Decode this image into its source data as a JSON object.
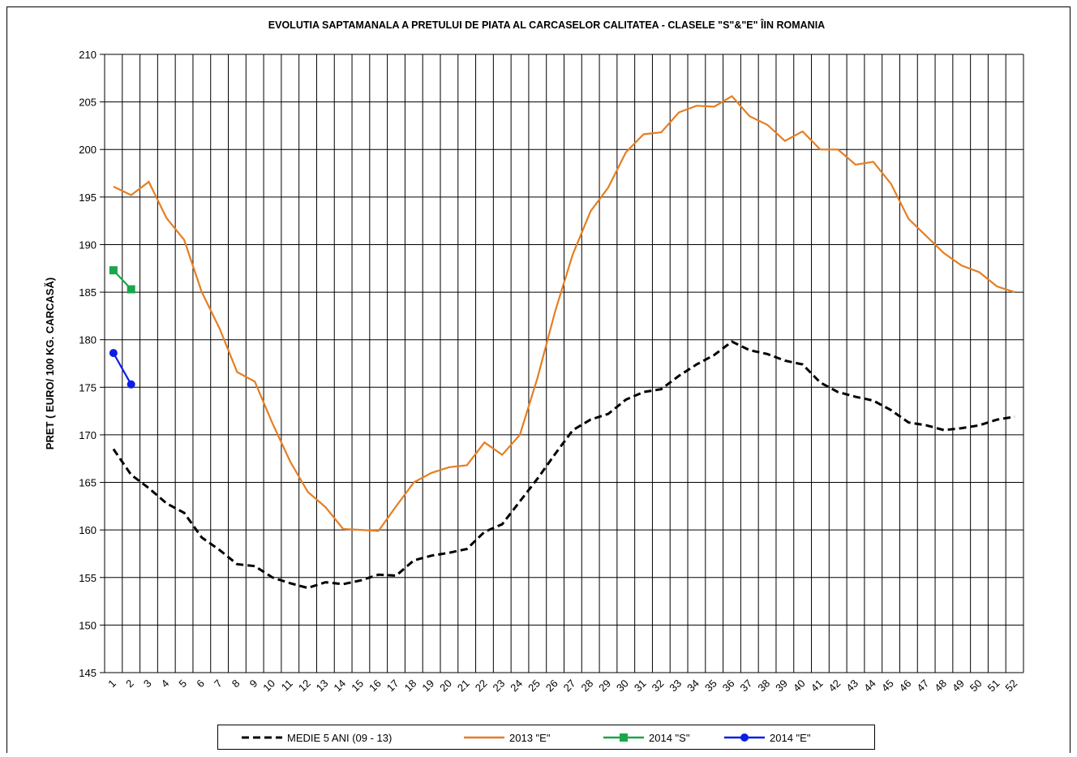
{
  "chart_data": {
    "type": "line",
    "title": "EVOLUTIA SAPTAMANALA  A PRETULUI  DE PIATA  AL CARCASELOR  CALITATEA - CLASELE \"S\"&\"E\"  ÎIN ROMANIA",
    "y_label": "PRET ( EURO/ 100 KG. CARCASĂ)",
    "categories": [
      "1",
      "2",
      "3",
      "4",
      "5",
      "6",
      "7",
      "8",
      "9",
      "10",
      "11",
      "12",
      "13",
      "14",
      "15",
      "16",
      "17",
      "18",
      "19",
      "20",
      "21",
      "22",
      "23",
      "24",
      "25",
      "26",
      "27",
      "28",
      "29",
      "30",
      "31",
      "32",
      "33",
      "34",
      "35",
      "36",
      "37",
      "38",
      "39",
      "40",
      "41",
      "42",
      "43",
      "44",
      "45",
      "46",
      "47",
      "48",
      "49",
      "50",
      "51",
      "52"
    ],
    "ylim": [
      145,
      210
    ],
    "yticks": [
      145,
      150,
      155,
      160,
      165,
      170,
      175,
      180,
      185,
      190,
      195,
      200,
      205,
      210
    ],
    "grid": true,
    "legend": "bottom",
    "series": [
      {
        "name": "MEDIE 5 ANI (09 - 13)",
        "color": "#000000",
        "dash": true,
        "marker": "none",
        "values": [
          168.5,
          165.8,
          164.4,
          162.8,
          161.8,
          159.2,
          157.9,
          156.4,
          156.2,
          155.0,
          154.4,
          153.9,
          154.5,
          154.3,
          154.7,
          155.3,
          155.2,
          156.8,
          157.3,
          157.6,
          158.0,
          159.8,
          160.6,
          163.0,
          165.4,
          168.0,
          170.5,
          171.6,
          172.2,
          173.7,
          174.5,
          174.8,
          176.2,
          177.4,
          178.4,
          179.8,
          178.9,
          178.5,
          177.8,
          177.4,
          175.5,
          174.5,
          174.0,
          173.6,
          172.6,
          171.3,
          171.0,
          170.5,
          170.7,
          171.0,
          171.6,
          171.9
        ]
      },
      {
        "name": "2013 \"E\"",
        "color": "#e67e22",
        "dash": false,
        "marker": "none",
        "values": [
          196.1,
          195.2,
          196.6,
          192.8,
          190.5,
          185.0,
          181.2,
          176.6,
          175.6,
          171.2,
          167.2,
          164.0,
          162.4,
          160.1,
          160.0,
          159.9,
          162.5,
          165.0,
          166.0,
          166.6,
          166.8,
          169.2,
          167.9,
          170.0,
          176.0,
          183.0,
          189.0,
          193.5,
          196.0,
          199.7,
          201.6,
          201.8,
          203.9,
          204.6,
          204.5,
          205.6,
          203.5,
          202.6,
          200.9,
          201.9,
          200.0,
          200.0,
          198.4,
          198.7,
          196.4,
          192.7,
          190.9,
          189.1,
          187.8,
          187.1,
          185.6,
          185.0
        ]
      },
      {
        "name": "2014 \"S\"",
        "color": "#1aa64a",
        "dash": false,
        "marker": "square",
        "values": [
          187.3,
          185.3,
          null,
          null,
          null,
          null,
          null,
          null,
          null,
          null,
          null,
          null,
          null,
          null,
          null,
          null,
          null,
          null,
          null,
          null,
          null,
          null,
          null,
          null,
          null,
          null,
          null,
          null,
          null,
          null,
          null,
          null,
          null,
          null,
          null,
          null,
          null,
          null,
          null,
          null,
          null,
          null,
          null,
          null,
          null,
          null,
          null,
          null,
          null,
          null,
          null,
          null
        ]
      },
      {
        "name": "2014 \"E\"",
        "color": "#0a1ee6",
        "dash": false,
        "marker": "circle",
        "values": [
          178.6,
          175.3,
          null,
          null,
          null,
          null,
          null,
          null,
          null,
          null,
          null,
          null,
          null,
          null,
          null,
          null,
          null,
          null,
          null,
          null,
          null,
          null,
          null,
          null,
          null,
          null,
          null,
          null,
          null,
          null,
          null,
          null,
          null,
          null,
          null,
          null,
          null,
          null,
          null,
          null,
          null,
          null,
          null,
          null,
          null,
          null,
          null,
          null,
          null,
          null,
          null,
          null
        ]
      }
    ]
  }
}
